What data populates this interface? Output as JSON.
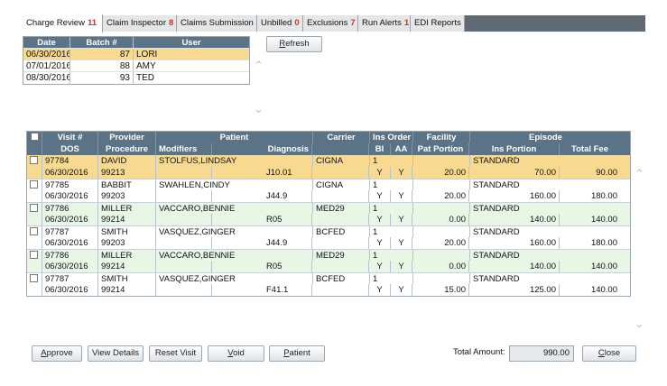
{
  "tabs": [
    {
      "label": "Charge Review",
      "count": "11",
      "active": true
    },
    {
      "label": "Claim Inspector",
      "count": "8"
    },
    {
      "label": "Claims Submission",
      "count": ""
    },
    {
      "label": "Unbilled",
      "count": "0"
    },
    {
      "label": "Exclusions",
      "count": "7"
    },
    {
      "label": "Run Alerts",
      "count": "1"
    },
    {
      "label": "EDI Reports",
      "count": ""
    }
  ],
  "batch": {
    "headers": [
      "Date",
      "Batch #",
      "User"
    ],
    "rows": [
      {
        "date": "06/30/2016",
        "batch": "87",
        "user": "LORI"
      },
      {
        "date": "07/01/2016",
        "batch": "88",
        "user": "AMY"
      },
      {
        "date": "08/30/2016",
        "batch": "93",
        "user": "TED"
      }
    ]
  },
  "refresh_label": "Refresh",
  "grid": {
    "header1": [
      "Visit #",
      "Provider",
      "Patient",
      "Carrier",
      "Ins Order",
      "Facility",
      "Episode"
    ],
    "header2": [
      "DOS",
      "Procedure",
      "Modifiers",
      "Diagnosis",
      "BI",
      "AA",
      "Pat Portion",
      "Ins Portion",
      "Total Fee"
    ],
    "records": [
      {
        "visit": "97784",
        "provider": "DAVID",
        "patient": "STOLFUS,LINDSAY",
        "carrier": "CIGNA",
        "ins": "1",
        "episode": "STANDARD",
        "dos": "06/30/2016",
        "procedure": "99213",
        "modifiers": "",
        "diagnosis": "J10.01",
        "bi": "Y",
        "aa": "Y",
        "pat": "20.00",
        "insp": "70.00",
        "fee": "90.00"
      },
      {
        "visit": "97785",
        "provider": "BABBIT",
        "patient": "SWAHLEN,CINDY",
        "carrier": "CIGNA",
        "ins": "1",
        "episode": "STANDARD",
        "dos": "06/30/2016",
        "procedure": "99203",
        "modifiers": "",
        "diagnosis": "J44.9",
        "bi": "Y",
        "aa": "Y",
        "pat": "20.00",
        "insp": "160.00",
        "fee": "180.00"
      },
      {
        "visit": "97786",
        "provider": "MILLER",
        "patient": "VACCARO,BENNIE",
        "carrier": "MED29",
        "ins": "1",
        "episode": "STANDARD",
        "dos": "06/30/2016",
        "procedure": "99214",
        "modifiers": "",
        "diagnosis": "R05",
        "bi": "Y",
        "aa": "Y",
        "pat": "0.00",
        "insp": "140.00",
        "fee": "140.00"
      },
      {
        "visit": "97787",
        "provider": "SMITH",
        "patient": "VASQUEZ,GINGER",
        "carrier": "BCFED",
        "ins": "1",
        "episode": "STANDARD",
        "dos": "06/30/2016",
        "procedure": "99203",
        "modifiers": "",
        "diagnosis": "J44.9",
        "bi": "Y",
        "aa": "Y",
        "pat": "20.00",
        "insp": "160.00",
        "fee": "180.00"
      },
      {
        "visit": "97786",
        "provider": "MILLER",
        "patient": "VACCARO,BENNIE",
        "carrier": "MED29",
        "ins": "1",
        "episode": "STANDARD",
        "dos": "06/30/2016",
        "procedure": "99214",
        "modifiers": "",
        "diagnosis": "R05",
        "bi": "Y",
        "aa": "Y",
        "pat": "0.00",
        "insp": "140.00",
        "fee": "140.00"
      },
      {
        "visit": "97787",
        "provider": "SMITH",
        "patient": "VASQUEZ,GINGER",
        "carrier": "BCFED",
        "ins": "1",
        "episode": "STANDARD",
        "dos": "06/30/2016",
        "procedure": "99214",
        "modifiers": "",
        "diagnosis": "F41.1",
        "bi": "Y",
        "aa": "Y",
        "pat": "15.00",
        "insp": "125.00",
        "fee": "140.00"
      }
    ]
  },
  "buttons": {
    "approve": "Approve",
    "view_details": "View Details",
    "reset_visit": "Reset Visit",
    "void": "Void",
    "patient": "Patient",
    "close": "Close"
  },
  "total": {
    "label": "Total Amount:",
    "value": "990.00"
  },
  "icons": {
    "scroll_up": "chevron-up-icon",
    "scroll_down": "chevron-down-icon"
  },
  "colors": {
    "header": "#5a7387",
    "selected": "#f7d98f",
    "alt_row": "#e9f6e6",
    "tab_count": "#c0392b"
  }
}
